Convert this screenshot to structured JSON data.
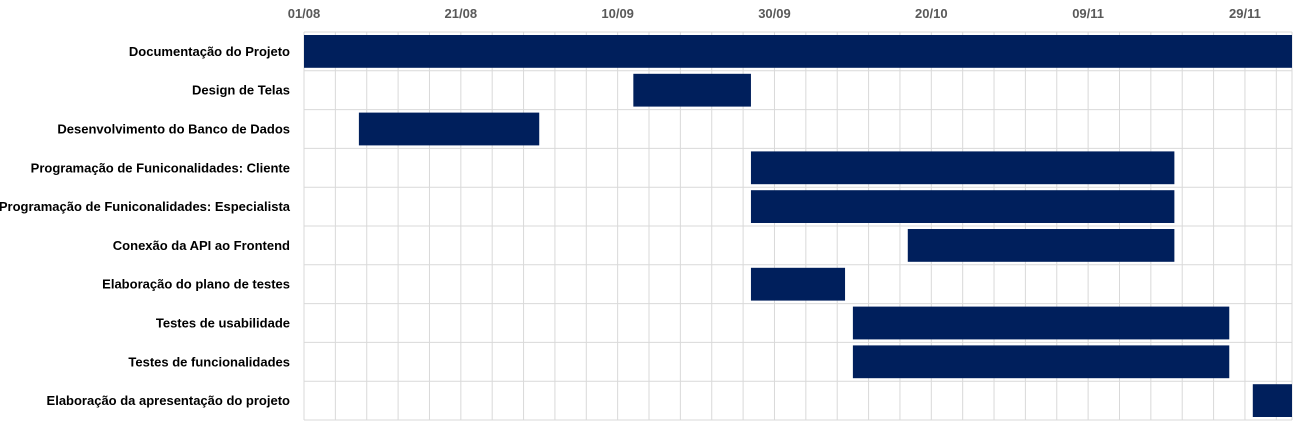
{
  "chart_data": {
    "type": "bar",
    "orientation": "horizontal-gantt",
    "title": "",
    "xlabel": "",
    "ylabel": "",
    "x_axis_position": "top",
    "grid": true,
    "legend": "none",
    "xlim": [
      "2023-08-01",
      "2023-12-05"
    ],
    "tick_labels": [
      "01/08",
      "21/08",
      "10/09",
      "30/09",
      "20/10",
      "09/11",
      "29/11"
    ],
    "tick_dates": [
      "2023-08-01",
      "2023-08-21",
      "2023-09-10",
      "2023-09-30",
      "2023-10-20",
      "2023-11-09",
      "2023-11-29"
    ],
    "tasks": [
      {
        "label": "Documentação do Projeto",
        "start": "2023-08-01",
        "end": "2023-12-05"
      },
      {
        "label": "Design de Telas",
        "start": "2023-09-12",
        "end": "2023-09-27"
      },
      {
        "label": "Desenvolvimento do Banco de Dados",
        "start": "2023-08-08",
        "end": "2023-08-31"
      },
      {
        "label": "Programação de Funiconalidades: Cliente",
        "start": "2023-09-27",
        "end": "2023-11-20"
      },
      {
        "label": "Programação de Funiconalidades: Especialista",
        "start": "2023-09-27",
        "end": "2023-11-20"
      },
      {
        "label": "Conexão da API ao Frontend",
        "start": "2023-10-17",
        "end": "2023-11-20"
      },
      {
        "label": "Elaboração do plano de testes",
        "start": "2023-09-27",
        "end": "2023-10-09"
      },
      {
        "label": "Testes de usabilidade",
        "start": "2023-10-10",
        "end": "2023-11-27"
      },
      {
        "label": "Testes de funcionalidades",
        "start": "2023-10-10",
        "end": "2023-11-27"
      },
      {
        "label": "Elaboração da apresentação do projeto",
        "start": "2023-11-30",
        "end": "2023-12-05"
      }
    ],
    "colors": {
      "bar": "#001f5c",
      "grid": "#d9d9d9",
      "tick_text": "#595959",
      "task_text": "#000000"
    }
  }
}
